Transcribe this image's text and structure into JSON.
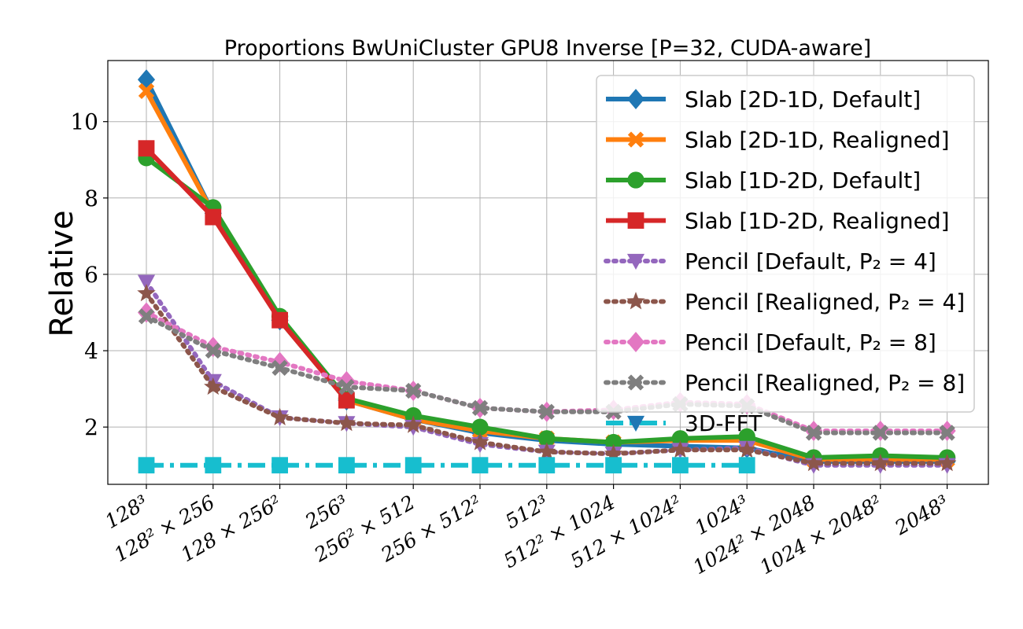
{
  "chart_data": {
    "type": "line",
    "title": "Proportions BwUniCluster GPU8 Inverse [P=32, CUDA-aware]",
    "xlabel": "",
    "ylabel": "Relative",
    "categories": [
      "128³",
      "128² × 256",
      "128 × 256²",
      "256³",
      "256² × 512",
      "256 × 512²",
      "512³",
      "512² × 1024",
      "512 × 1024²",
      "1024³",
      "1024² × 2048",
      "1024 × 2048²",
      "2048³"
    ],
    "ylim": [
      0.5,
      11.6
    ],
    "yticks": [
      2,
      4,
      6,
      8,
      10
    ],
    "grid": true,
    "legend_position": "top-right",
    "series": [
      {
        "name": "Slab [2D-1D, Default]",
        "color": "#1f77b4",
        "marker": "diamond",
        "line": "solid",
        "values": [
          11.1,
          7.6,
          4.8,
          2.7,
          2.2,
          1.85,
          1.65,
          1.55,
          1.5,
          1.45,
          1.1,
          1.1,
          1.1
        ]
      },
      {
        "name": "Slab [2D-1D, Realigned]",
        "color": "#ff7f0e",
        "marker": "x",
        "line": "solid",
        "values": [
          10.8,
          7.6,
          4.8,
          2.7,
          2.2,
          1.9,
          1.7,
          1.6,
          1.65,
          1.65,
          1.15,
          1.15,
          1.15
        ]
      },
      {
        "name": "Slab [1D-2D, Default]",
        "color": "#2ca02c",
        "marker": "circle",
        "line": "solid",
        "values": [
          9.05,
          7.75,
          4.9,
          2.75,
          2.3,
          2.0,
          1.7,
          1.6,
          1.7,
          1.75,
          1.2,
          1.25,
          1.2
        ]
      },
      {
        "name": "Slab [1D-2D, Realigned]",
        "color": "#d62728",
        "marker": "square",
        "line": "solid",
        "values": [
          9.3,
          7.5,
          4.8,
          2.7,
          null,
          null,
          null,
          null,
          null,
          null,
          null,
          null,
          null
        ]
      },
      {
        "name": "Pencil [Default, P₂ = 4]",
        "color": "#9467bd",
        "marker": "triangle-down",
        "line": "dotted",
        "values": [
          5.8,
          3.2,
          2.25,
          2.1,
          2.0,
          1.55,
          1.35,
          1.3,
          1.4,
          1.45,
          1.0,
          1.0,
          1.0
        ]
      },
      {
        "name": "Pencil [Realigned, P₂ = 4]",
        "color": "#8c564b",
        "marker": "star",
        "line": "dotted",
        "values": [
          5.5,
          3.05,
          2.25,
          2.1,
          2.05,
          1.6,
          1.35,
          1.3,
          1.4,
          1.4,
          1.05,
          1.05,
          1.05
        ]
      },
      {
        "name": "Pencil [Default, P₂ = 8]",
        "color": "#e377c2",
        "marker": "diamond",
        "line": "dotted",
        "values": [
          5.0,
          4.1,
          3.7,
          3.2,
          2.95,
          2.5,
          2.4,
          2.45,
          2.65,
          2.6,
          1.9,
          1.9,
          1.9
        ]
      },
      {
        "name": "Pencil [Realigned, P₂ = 8]",
        "color": "#7f7f7f",
        "marker": "x",
        "line": "dotted",
        "values": [
          4.9,
          4.0,
          3.55,
          3.05,
          2.95,
          2.5,
          2.4,
          2.4,
          2.6,
          2.55,
          1.85,
          1.85,
          1.85
        ]
      },
      {
        "name": "3D-FFT",
        "color": "#17becf",
        "marker": "square",
        "line": "dashdot",
        "legend_marker": "triangle-down",
        "legend_marker_color": "#1f77b4",
        "values": [
          1.0,
          1.0,
          1.0,
          1.0,
          1.0,
          1.0,
          1.0,
          1.0,
          1.0,
          1.0,
          null,
          null,
          null
        ]
      }
    ]
  }
}
